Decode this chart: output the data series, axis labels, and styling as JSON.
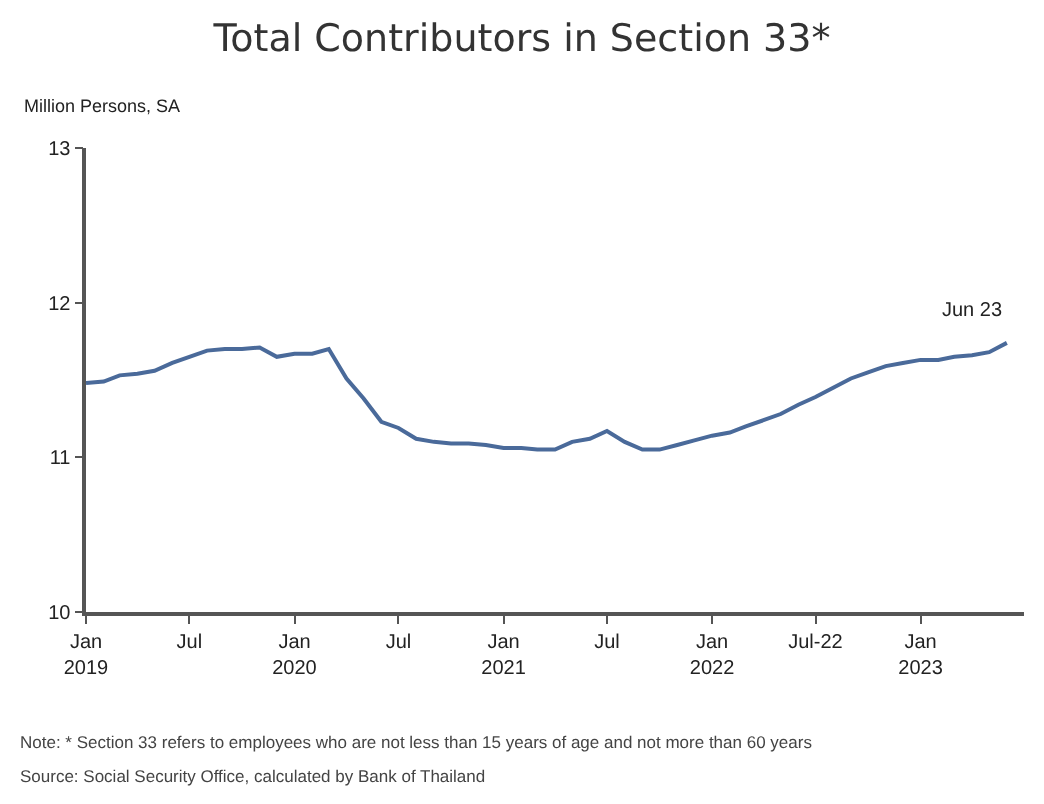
{
  "chart_data": {
    "type": "line",
    "title": "Total Contributors in Section 33*",
    "ylabel": "Million Persons, SA",
    "x": [
      "2019-01",
      "2019-02",
      "2019-03",
      "2019-04",
      "2019-05",
      "2019-06",
      "2019-07",
      "2019-08",
      "2019-09",
      "2019-10",
      "2019-11",
      "2019-12",
      "2020-01",
      "2020-02",
      "2020-03",
      "2020-04",
      "2020-05",
      "2020-06",
      "2020-07",
      "2020-08",
      "2020-09",
      "2020-10",
      "2020-11",
      "2020-12",
      "2021-01",
      "2021-02",
      "2021-03",
      "2021-04",
      "2021-05",
      "2021-06",
      "2021-07",
      "2021-08",
      "2021-09",
      "2021-10",
      "2021-11",
      "2021-12",
      "2022-01",
      "2022-02",
      "2022-03",
      "2022-04",
      "2022-05",
      "2022-06",
      "2022-07",
      "2022-08",
      "2022-09",
      "2022-10",
      "2022-11",
      "2022-12",
      "2023-01",
      "2023-02",
      "2023-03",
      "2023-04",
      "2023-05",
      "2023-06"
    ],
    "series": [
      {
        "color": "#4a6a9a",
        "values": [
          11.48,
          11.49,
          11.53,
          11.54,
          11.56,
          11.61,
          11.65,
          11.69,
          11.7,
          11.7,
          11.71,
          11.65,
          11.67,
          11.67,
          11.7,
          11.51,
          11.38,
          11.23,
          11.19,
          11.12,
          11.1,
          11.09,
          11.09,
          11.08,
          11.06,
          11.06,
          11.05,
          11.05,
          11.1,
          11.12,
          11.17,
          11.1,
          11.05,
          11.05,
          11.08,
          11.11,
          11.14,
          11.16,
          11.2,
          11.24,
          11.28,
          11.34,
          11.39,
          11.45,
          11.51,
          11.55,
          11.59,
          11.61,
          11.63,
          11.63,
          11.65,
          11.66,
          11.68,
          11.74
        ]
      }
    ],
    "xlim": [
      "2019-01",
      "2023-07"
    ],
    "ylim": [
      10,
      13
    ],
    "yticks": [
      10,
      11,
      12,
      13
    ],
    "xticks": [
      {
        "value": "2019-01",
        "label": "Jan\n2019"
      },
      {
        "value": "2019-07",
        "label": "Jul"
      },
      {
        "value": "2020-01",
        "label": "Jan\n2020"
      },
      {
        "value": "2020-07",
        "label": "Jul"
      },
      {
        "value": "2021-01",
        "label": "Jan\n2021"
      },
      {
        "value": "2021-07",
        "label": "Jul"
      },
      {
        "value": "2022-01",
        "label": "Jan\n2022"
      },
      {
        "value": "2022-07",
        "label": "Jul-22"
      },
      {
        "value": "2023-01",
        "label": "Jan\n2023"
      }
    ],
    "annotations": [
      {
        "text": "Jun 23",
        "x": "2023-06",
        "y": 11.74
      },
      "Note: * Section 33 refers to employees who are not less than 15 years of age and not more than 60 years",
      "Source: Social Security Office, calculated by Bank of Thailand"
    ],
    "marker": "none",
    "line_style": "solid"
  }
}
